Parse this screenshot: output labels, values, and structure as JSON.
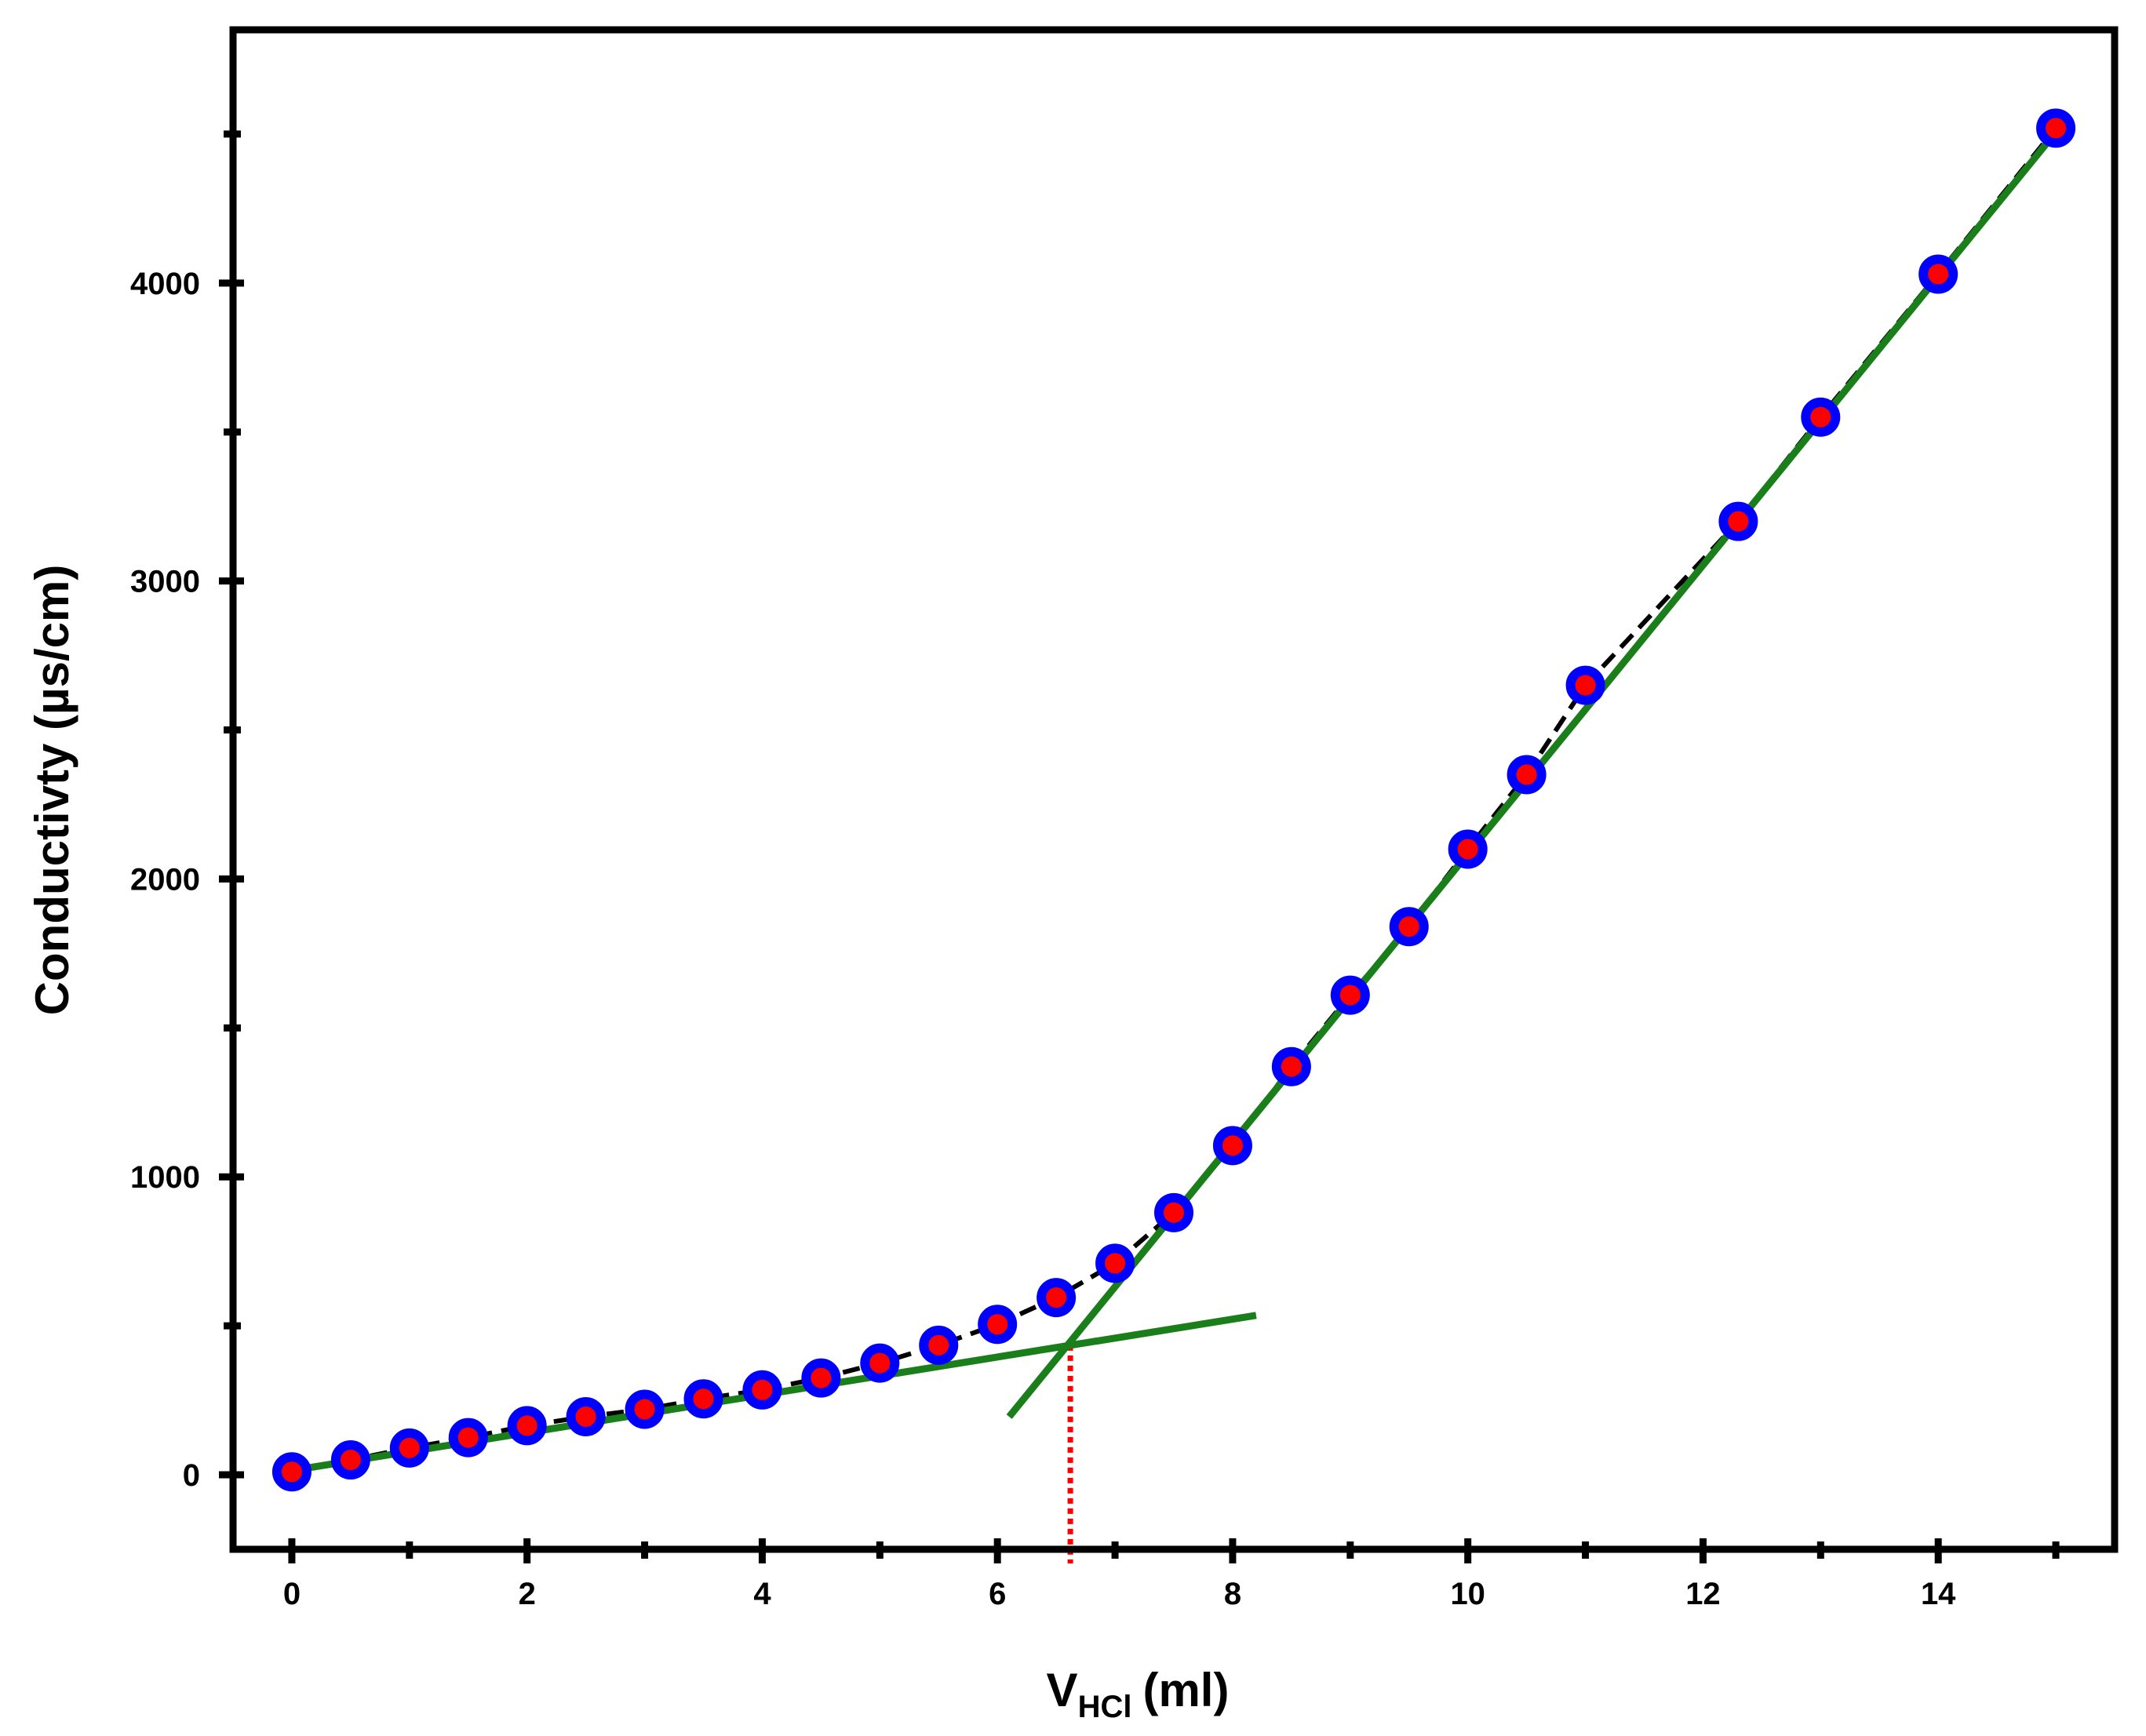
{
  "chart_data": {
    "type": "scatter",
    "title": "",
    "xlabel": {
      "main": "V",
      "sub": "HCl",
      "unit": "(ml)"
    },
    "ylabel": "Conductivty (µs/cm)",
    "xlim": [
      -0.5,
      15.5
    ],
    "ylim": [
      -250,
      4850
    ],
    "x_ticks": [
      0,
      2,
      4,
      6,
      8,
      10,
      12,
      14
    ],
    "x_minor_ticks": [
      1,
      3,
      5,
      7,
      9,
      11,
      13,
      15
    ],
    "y_ticks": [
      0,
      1000,
      2000,
      3000,
      4000
    ],
    "y_minor_ticks": [
      500,
      1500,
      2500,
      3500,
      4500
    ],
    "grid": false,
    "series": [
      {
        "marker_fill": "#ff0000",
        "marker_edge": "#0000ff",
        "line_color": "#000000",
        "line_style": "dashed",
        "x": [
          0,
          0.5,
          1,
          1.5,
          2,
          2.5,
          3,
          3.5,
          4,
          4.5,
          5,
          5.5,
          6,
          6.5,
          7,
          7.5,
          8,
          8.5,
          9,
          9.5,
          10,
          10.5,
          11,
          12.3,
          13,
          14,
          15
        ],
        "y": [
          10,
          50,
          90,
          125,
          165,
          195,
          220,
          255,
          285,
          325,
          375,
          435,
          505,
          595,
          710,
          880,
          1105,
          1370,
          1610,
          1840,
          2100,
          2350,
          2650,
          3200,
          3550,
          4030,
          4520
        ]
      }
    ],
    "fit_lines": [
      {
        "color": "#1a7f1a",
        "x": [
          -0.15,
          8.2
        ],
        "y": [
          5,
          535
        ]
      },
      {
        "color": "#1a7f1a",
        "x": [
          6.1,
          15.1
        ],
        "y": [
          195,
          4555
        ]
      }
    ],
    "equivalence_marker": {
      "color": "#ff0000",
      "style": "dotted",
      "x": 6.62,
      "y": 435
    }
  }
}
